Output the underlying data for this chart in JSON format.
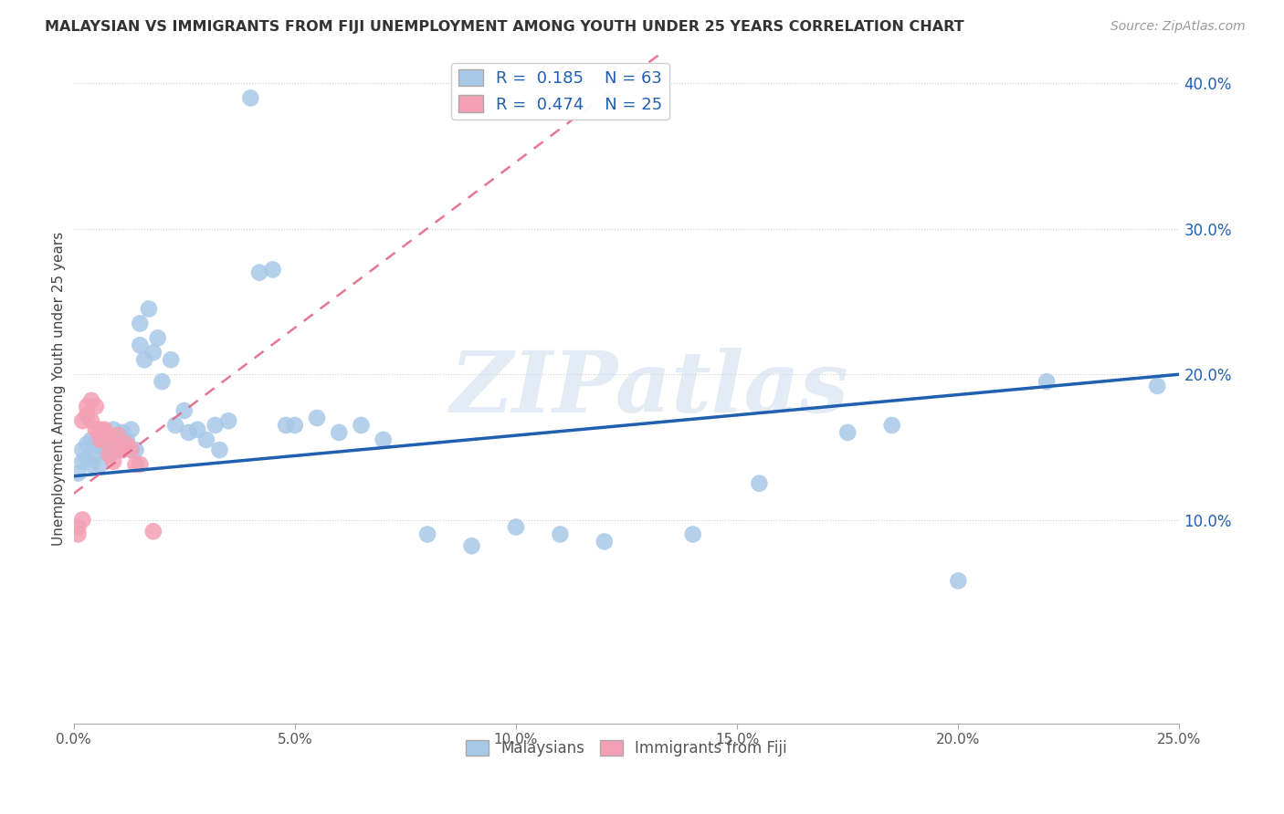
{
  "title": "MALAYSIAN VS IMMIGRANTS FROM FIJI UNEMPLOYMENT AMONG YOUTH UNDER 25 YEARS CORRELATION CHART",
  "source": "Source: ZipAtlas.com",
  "ylabel": "Unemployment Among Youth under 25 years",
  "xlim": [
    0.0,
    0.25
  ],
  "ylim": [
    -0.04,
    0.42
  ],
  "xtick_labels": [
    "0.0%",
    "5.0%",
    "10.0%",
    "15.0%",
    "20.0%",
    "25.0%"
  ],
  "xtick_vals": [
    0.0,
    0.05,
    0.1,
    0.15,
    0.2,
    0.25
  ],
  "ytick_labels": [
    "10.0%",
    "20.0%",
    "30.0%",
    "40.0%"
  ],
  "ytick_vals": [
    0.1,
    0.2,
    0.3,
    0.4
  ],
  "blue_r": 0.185,
  "blue_n": 63,
  "pink_r": 0.474,
  "pink_n": 25,
  "malaysian_color": "#a8c8e8",
  "fiji_color": "#f4a0b4",
  "blue_line_color": "#2060b0",
  "pink_line_color": "#e06080",
  "watermark": "ZIPatlas",
  "legend_labels": [
    "Malaysians",
    "Immigrants from Fiji"
  ],
  "blue_line_x0": 0.0,
  "blue_line_y0": 0.13,
  "blue_line_x1": 0.25,
  "blue_line_y1": 0.2,
  "pink_line_x0": 0.0,
  "pink_line_y0": 0.118,
  "pink_line_x1": 0.025,
  "pink_line_y1": 0.175,
  "mal_x": [
    0.001,
    0.002,
    0.002,
    0.003,
    0.003,
    0.004,
    0.004,
    0.005,
    0.005,
    0.006,
    0.006,
    0.007,
    0.007,
    0.008,
    0.008,
    0.009,
    0.009,
    0.01,
    0.01,
    0.011,
    0.011,
    0.012,
    0.012,
    0.013,
    0.013,
    0.014,
    0.015,
    0.015,
    0.016,
    0.017,
    0.018,
    0.019,
    0.02,
    0.022,
    0.023,
    0.025,
    0.026,
    0.028,
    0.03,
    0.032,
    0.033,
    0.035,
    0.04,
    0.042,
    0.045,
    0.048,
    0.05,
    0.055,
    0.06,
    0.065,
    0.07,
    0.08,
    0.09,
    0.1,
    0.11,
    0.12,
    0.14,
    0.155,
    0.175,
    0.185,
    0.2,
    0.22,
    0.245
  ],
  "mal_y": [
    0.132,
    0.14,
    0.148,
    0.142,
    0.152,
    0.138,
    0.155,
    0.145,
    0.152,
    0.138,
    0.15,
    0.148,
    0.16,
    0.145,
    0.155,
    0.148,
    0.162,
    0.155,
    0.148,
    0.148,
    0.16,
    0.15,
    0.155,
    0.148,
    0.162,
    0.148,
    0.22,
    0.235,
    0.21,
    0.245,
    0.215,
    0.225,
    0.195,
    0.21,
    0.165,
    0.175,
    0.16,
    0.162,
    0.155,
    0.165,
    0.148,
    0.168,
    0.39,
    0.27,
    0.272,
    0.165,
    0.165,
    0.17,
    0.16,
    0.165,
    0.155,
    0.09,
    0.082,
    0.095,
    0.09,
    0.085,
    0.09,
    0.125,
    0.16,
    0.165,
    0.058,
    0.195,
    0.192
  ],
  "fij_x": [
    0.001,
    0.001,
    0.002,
    0.002,
    0.003,
    0.003,
    0.004,
    0.004,
    0.005,
    0.005,
    0.006,
    0.006,
    0.007,
    0.007,
    0.008,
    0.008,
    0.009,
    0.01,
    0.01,
    0.011,
    0.012,
    0.013,
    0.014,
    0.015,
    0.018
  ],
  "fij_y": [
    0.095,
    0.09,
    0.1,
    0.168,
    0.172,
    0.178,
    0.168,
    0.182,
    0.162,
    0.178,
    0.155,
    0.162,
    0.155,
    0.162,
    0.145,
    0.158,
    0.14,
    0.15,
    0.158,
    0.148,
    0.152,
    0.148,
    0.138,
    0.138,
    0.092
  ]
}
